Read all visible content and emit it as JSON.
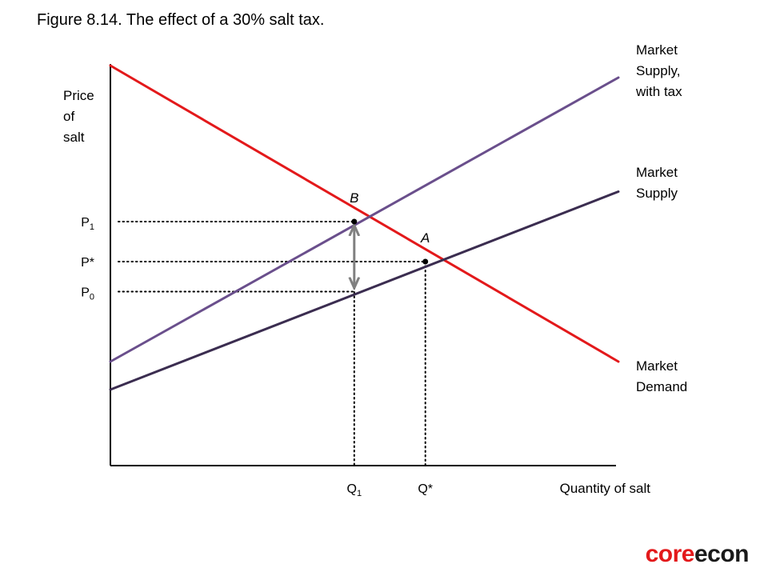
{
  "figure": {
    "title": "Figure 8.14. The effect of a 30% salt tax."
  },
  "colors": {
    "demand": "#e3191b",
    "supply": "#3b2d50",
    "supply_tax": "#6a4f8c",
    "arrow": "#808080",
    "axis": "#000000",
    "dotted": "#000000"
  },
  "chart_data": {
    "type": "line",
    "xlabel": "Quantity of salt",
    "ylabel": "Price of salt",
    "ylabel_lines": [
      "Price",
      "of",
      "salt"
    ],
    "axes": {
      "x_ticks_numeric": false,
      "y_ticks_numeric": false,
      "grid": false
    },
    "series": [
      {
        "name": "Market Demand",
        "label_lines": [
          "Market",
          "Demand"
        ],
        "color_key": "demand",
        "points": [
          [
            0,
            100
          ],
          [
            100,
            26
          ]
        ]
      },
      {
        "name": "Market Supply",
        "label_lines": [
          "Market",
          "Supply"
        ],
        "color_key": "supply",
        "points": [
          [
            0,
            19
          ],
          [
            100,
            68.5
          ]
        ]
      },
      {
        "name": "Market Supply, with tax",
        "label_lines": [
          "Market",
          "Supply,",
          "with tax"
        ],
        "color_key": "supply_tax",
        "points": [
          [
            0,
            26
          ],
          [
            100,
            97
          ]
        ]
      }
    ],
    "annotations": [
      {
        "label": "B",
        "italic": true,
        "x": 48,
        "y": 61,
        "point": true
      },
      {
        "label": "A",
        "italic": true,
        "x": 62,
        "y": 51,
        "point": true
      }
    ],
    "reference_lines": [
      {
        "label": "P",
        "sub": "1",
        "axis": "y",
        "value": 61,
        "to_x": 48
      },
      {
        "label": "P*",
        "sub": "",
        "axis": "y",
        "value": 51,
        "to_x": 62
      },
      {
        "label": "P",
        "sub": "0",
        "axis": "y",
        "value": 43.5,
        "to_x": 48
      },
      {
        "label": "Q",
        "sub": "1",
        "axis": "x",
        "value": 48,
        "to_y": 61
      },
      {
        "label": "Q*",
        "sub": "",
        "axis": "x",
        "value": 62,
        "to_y": 51
      }
    ],
    "tax_arrow": {
      "x": 48,
      "from_y": 43.5,
      "to_y": 61
    }
  },
  "branding": {
    "logo_core": "core",
    "logo_econ": "econ"
  }
}
